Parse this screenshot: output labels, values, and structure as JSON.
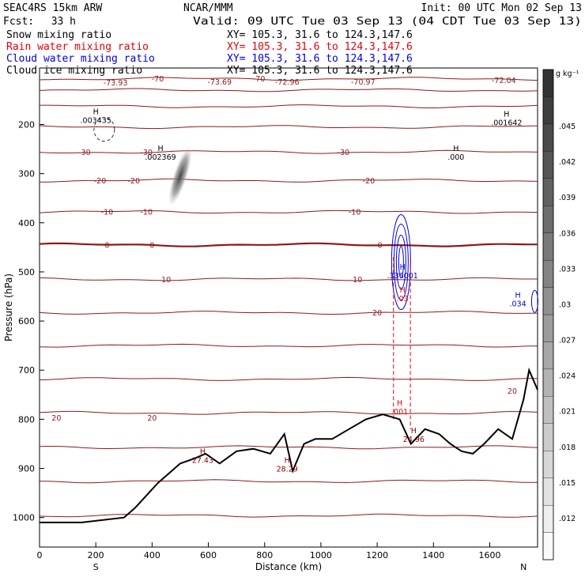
{
  "header": {
    "model": "SEAC4RS 15km ARW",
    "center": "NCAR/MMM",
    "init": "Init: 00 UTC Mon 02 Sep 13",
    "fcst_label": "Fcst:",
    "fcst_value": "33 h",
    "valid": "Valid: 09 UTC Tue 03 Sep 13 (04 CDT Tue 03 Sep 13)"
  },
  "fields": [
    {
      "name": "Snow mixing ratio",
      "xy": "XY= 105.3, 31.6 to 124.3,147.6",
      "color": "#000000"
    },
    {
      "name": "Rain water mixing ratio",
      "xy": "XY= 105.3, 31.6 to 124.3,147.6",
      "color": "#e8000b"
    },
    {
      "name": "Cloud water mixing ratio",
      "xy": "XY= 105.3, 31.6 to 124.3,147.6",
      "color": "#0000e0"
    },
    {
      "name": "Cloud ice mixing ratio",
      "xy": "XY= 105.3, 31.6 to 124.3,147.6",
      "color": "#000000"
    }
  ],
  "chart_data": {
    "type": "contour",
    "title": "",
    "xlabel": "Distance (km)",
    "ylabel": "Pressure (hPa)",
    "xlim": [
      0,
      1770
    ],
    "ylim": [
      1060,
      85
    ],
    "xticks": [
      0,
      200,
      400,
      600,
      800,
      1000,
      1200,
      1400,
      1600
    ],
    "yticks": [
      200,
      300,
      400,
      500,
      600,
      700,
      800,
      900,
      1000
    ],
    "x_end_labels": {
      "left": "S",
      "right": "N"
    },
    "colorbar": {
      "unit": "g kg⁻¹",
      "ticks": [
        ".012",
        ".015",
        ".018",
        ".021",
        ".024",
        ".027",
        ".03",
        ".033",
        ".036",
        ".039",
        ".042",
        ".045"
      ]
    },
    "temperature_contours": [
      {
        "value": -70,
        "pressure": 107
      },
      {
        "value": -60,
        "pressure": 130
      },
      {
        "value": -50,
        "pressure": 163
      },
      {
        "value": -40,
        "pressure": 205
      },
      {
        "value": -30,
        "pressure": 256
      },
      {
        "value": -20,
        "pressure": 314
      },
      {
        "value": -10,
        "pressure": 378
      },
      {
        "value": 0,
        "pressure": 445
      },
      {
        "value": 10,
        "pressure": 515
      },
      {
        "value": 20,
        "pressure": 583
      },
      {
        "value": 30,
        "pressure": 650
      },
      {
        "value": 40,
        "pressure": 718
      },
      {
        "value": 50,
        "pressure": 787
      },
      {
        "value": 60,
        "pressure": 857
      },
      {
        "value": 70,
        "pressure": 926
      },
      {
        "value": 80,
        "pressure": 996
      }
    ],
    "contour_labels": [
      {
        "text": "-73.93",
        "x": 270,
        "p": 115
      },
      {
        "text": "-70",
        "x": 420,
        "p": 107
      },
      {
        "text": "-73.69",
        "x": 640,
        "p": 113
      },
      {
        "text": "-70",
        "x": 780,
        "p": 107
      },
      {
        "text": "-72.96",
        "x": 880,
        "p": 113
      },
      {
        "text": "-70.97",
        "x": 1150,
        "p": 113
      },
      {
        "text": "-72.04",
        "x": 1650,
        "p": 110
      },
      {
        "text": "-30",
        "x": 160,
        "p": 256
      },
      {
        "text": "-30",
        "x": 380,
        "p": 256
      },
      {
        "text": "-30",
        "x": 1080,
        "p": 256
      },
      {
        "text": "-20",
        "x": 215,
        "p": 314
      },
      {
        "text": "-20",
        "x": 335,
        "p": 314
      },
      {
        "text": "-20",
        "x": 1170,
        "p": 314
      },
      {
        "text": "-10",
        "x": 240,
        "p": 378
      },
      {
        "text": "-10",
        "x": 380,
        "p": 378
      },
      {
        "text": "-10",
        "x": 1120,
        "p": 378
      },
      {
        "text": "0",
        "x": 240,
        "p": 445
      },
      {
        "text": "0",
        "x": 400,
        "p": 445
      },
      {
        "text": "0",
        "x": 1210,
        "p": 445
      },
      {
        "text": "10",
        "x": 450,
        "p": 515
      },
      {
        "text": "10",
        "x": 1130,
        "p": 515
      },
      {
        "text": "20",
        "x": 1200,
        "p": 583
      },
      {
        "text": "20",
        "x": 60,
        "p": 797
      },
      {
        "text": "20",
        "x": 400,
        "p": 797
      },
      {
        "text": "20",
        "x": 1680,
        "p": 742
      }
    ],
    "extrema_labels": [
      {
        "text": ".003435",
        "x": 200,
        "p": 197,
        "color": "#000000"
      },
      {
        "text": ".002369",
        "x": 430,
        "p": 272,
        "color": "#000000"
      },
      {
        "text": ".001642",
        "x": 1660,
        "p": 202,
        "color": "#000000"
      },
      {
        "text": ".000",
        "x": 1480,
        "p": 272,
        "color": "#000000"
      },
      {
        "text": "27.43",
        "x": 580,
        "p": 889,
        "color": "#8b0000"
      },
      {
        "text": "28.29",
        "x": 880,
        "p": 906,
        "color": "#8b0000"
      },
      {
        "text": "24.96",
        "x": 1330,
        "p": 846,
        "color": "#8b0000"
      },
      {
        "text": ".336001",
        "x": 1290,
        "p": 513,
        "color": "#0000e0"
      },
      {
        "text": ".034",
        "x": 1700,
        "p": 570,
        "color": "#0000e0"
      },
      {
        "text": ".001",
        "x": 1280,
        "p": 790,
        "color": "#e8000b"
      },
      {
        "text": ".03",
        "x": 1290,
        "p": 560,
        "color": "#e8000b"
      }
    ],
    "terrain": {
      "x": [
        0,
        150,
        300,
        340,
        420,
        500,
        550,
        590,
        640,
        700,
        760,
        820,
        870,
        900,
        940,
        980,
        1040,
        1100,
        1160,
        1220,
        1280,
        1320,
        1370,
        1420,
        1460,
        1500,
        1540,
        1580,
        1630,
        1680,
        1720,
        1740,
        1770
      ],
      "p": [
        1010,
        1010,
        1000,
        980,
        930,
        890,
        880,
        870,
        890,
        865,
        860,
        870,
        830,
        905,
        850,
        840,
        840,
        820,
        800,
        790,
        800,
        850,
        820,
        830,
        850,
        865,
        870,
        850,
        820,
        840,
        760,
        700,
        740
      ]
    }
  }
}
